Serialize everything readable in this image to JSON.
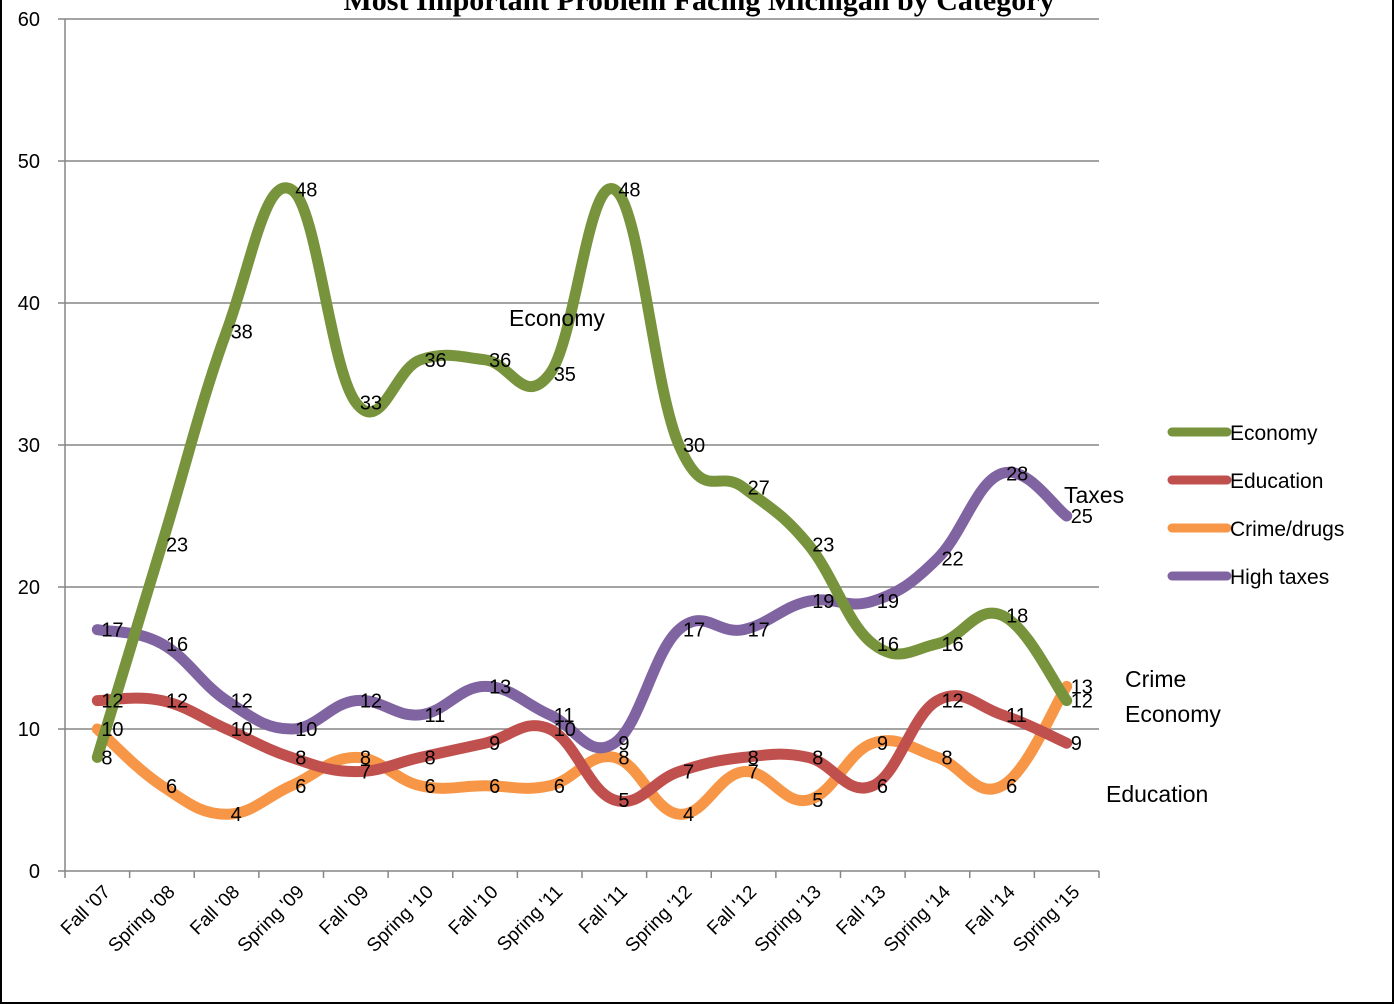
{
  "chart_data": {
    "type": "line",
    "title": "Most Important Problem Facing Michigan by Category",
    "categories": [
      "Fall '07",
      "Spring '08",
      "Fall '08",
      "Spring '09",
      "Fall '09",
      "Spring '10",
      "Fall '10",
      "Spring '11",
      "Fall '11",
      "Spring '12",
      "Fall '12",
      "Spring '13",
      "Fall '13",
      "Spring '14",
      "Fall '14",
      "Spring '15"
    ],
    "ylim": [
      0,
      60
    ],
    "yticks": [
      "0",
      "10",
      "20",
      "30",
      "40",
      "50",
      "60"
    ],
    "grid": true,
    "legend_position": "right",
    "series": [
      {
        "name": "Economy",
        "color": "#77933c",
        "values": [
          8,
          23,
          38,
          48,
          33,
          36,
          36,
          35,
          48,
          30,
          27,
          23,
          16,
          16,
          18,
          12
        ]
      },
      {
        "name": "Education",
        "color": "#c0504d",
        "values": [
          12,
          12,
          10,
          8,
          7,
          8,
          9,
          10,
          5,
          7,
          8,
          8,
          6,
          12,
          11,
          9
        ]
      },
      {
        "name": "Crime/drugs",
        "color": "#f79646",
        "values": [
          10,
          6,
          4,
          6,
          8,
          6,
          6,
          6,
          8,
          4,
          7,
          5,
          9,
          8,
          6,
          13
        ]
      },
      {
        "name": "High taxes",
        "color": "#8064a2",
        "values": [
          17,
          16,
          12,
          10,
          12,
          11,
          13,
          11,
          9,
          17,
          17,
          19,
          19,
          22,
          28,
          25
        ]
      }
    ],
    "data_labels": [
      {
        "text": "10",
        "x": 0,
        "y": 10
      },
      {
        "text": "8",
        "x": 0,
        "y": 8
      },
      {
        "text": "17",
        "x": 0,
        "y": 17
      },
      {
        "text": "12",
        "x": 0,
        "y": 12
      },
      {
        "text": "23",
        "x": 1,
        "y": 23
      },
      {
        "text": "16",
        "x": 1,
        "y": 16
      },
      {
        "text": "12",
        "x": 1,
        "y": 12
      },
      {
        "text": "6",
        "x": 1,
        "y": 6
      },
      {
        "text": "38",
        "x": 2,
        "y": 38
      },
      {
        "text": "12",
        "x": 2,
        "y": 12
      },
      {
        "text": "10",
        "x": 2,
        "y": 10
      },
      {
        "text": "4",
        "x": 2,
        "y": 4
      },
      {
        "text": "48",
        "x": 3,
        "y": 48
      },
      {
        "text": "10",
        "x": 3,
        "y": 10
      },
      {
        "text": "8",
        "x": 3,
        "y": 8
      },
      {
        "text": "6",
        "x": 3,
        "y": 6
      },
      {
        "text": "33",
        "x": 4,
        "y": 33
      },
      {
        "text": "12",
        "x": 4,
        "y": 12
      },
      {
        "text": "8",
        "x": 4,
        "y": 8
      },
      {
        "text": "7",
        "x": 4,
        "y": 7
      },
      {
        "text": "36",
        "x": 5,
        "y": 36
      },
      {
        "text": "11",
        "x": 5,
        "y": 11
      },
      {
        "text": "8",
        "x": 5,
        "y": 8
      },
      {
        "text": "6",
        "x": 5,
        "y": 6
      },
      {
        "text": "36",
        "x": 6,
        "y": 36
      },
      {
        "text": "13",
        "x": 6,
        "y": 13
      },
      {
        "text": "9",
        "x": 6,
        "y": 9
      },
      {
        "text": "6",
        "x": 6,
        "y": 6
      },
      {
        "text": "35",
        "x": 7,
        "y": 35
      },
      {
        "text": "11",
        "x": 7,
        "y": 11
      },
      {
        "text": "10",
        "x": 7,
        "y": 10
      },
      {
        "text": "6",
        "x": 7,
        "y": 6
      },
      {
        "text": "48",
        "x": 8,
        "y": 48
      },
      {
        "text": "9",
        "x": 8,
        "y": 9
      },
      {
        "text": "8",
        "x": 8,
        "y": 8
      },
      {
        "text": "5",
        "x": 8,
        "y": 5
      },
      {
        "text": "30",
        "x": 9,
        "y": 30
      },
      {
        "text": "17",
        "x": 9,
        "y": 17
      },
      {
        "text": "7",
        "x": 9,
        "y": 7
      },
      {
        "text": "4",
        "x": 9,
        "y": 4
      },
      {
        "text": "27",
        "x": 10,
        "y": 27
      },
      {
        "text": "17",
        "x": 10,
        "y": 17
      },
      {
        "text": "8",
        "x": 10,
        "y": 8
      },
      {
        "text": "7",
        "x": 10,
        "y": 7
      },
      {
        "text": "23",
        "x": 11,
        "y": 23
      },
      {
        "text": "19",
        "x": 11,
        "y": 19
      },
      {
        "text": "8",
        "x": 11,
        "y": 8
      },
      {
        "text": "5",
        "x": 11,
        "y": 5
      },
      {
        "text": "19",
        "x": 12,
        "y": 19
      },
      {
        "text": "16",
        "x": 12,
        "y": 16
      },
      {
        "text": "9",
        "x": 12,
        "y": 9
      },
      {
        "text": "6",
        "x": 12,
        "y": 6
      },
      {
        "text": "22",
        "x": 13,
        "y": 22
      },
      {
        "text": "16",
        "x": 13,
        "y": 16
      },
      {
        "text": "12",
        "x": 13,
        "y": 12
      },
      {
        "text": "8",
        "x": 13,
        "y": 8
      },
      {
        "text": "28",
        "x": 14,
        "y": 28
      },
      {
        "text": "18",
        "x": 14,
        "y": 18
      },
      {
        "text": "11",
        "x": 14,
        "y": 11
      },
      {
        "text": "6",
        "x": 14,
        "y": 6
      },
      {
        "text": "25",
        "x": 15,
        "y": 25
      },
      {
        "text": "13",
        "x": 15,
        "y": 13
      },
      {
        "text": "12",
        "x": 15,
        "y": 12
      },
      {
        "text": "9",
        "x": 15,
        "y": 9
      }
    ],
    "annotations": [
      {
        "text": "Economy",
        "near": "economy-series"
      },
      {
        "text": "Taxes",
        "near": "high-taxes-end"
      },
      {
        "text": "Crime",
        "near": "crime-end"
      },
      {
        "text": "Economy",
        "near": "economy-end"
      },
      {
        "text": "Education",
        "near": "education-end"
      }
    ]
  }
}
